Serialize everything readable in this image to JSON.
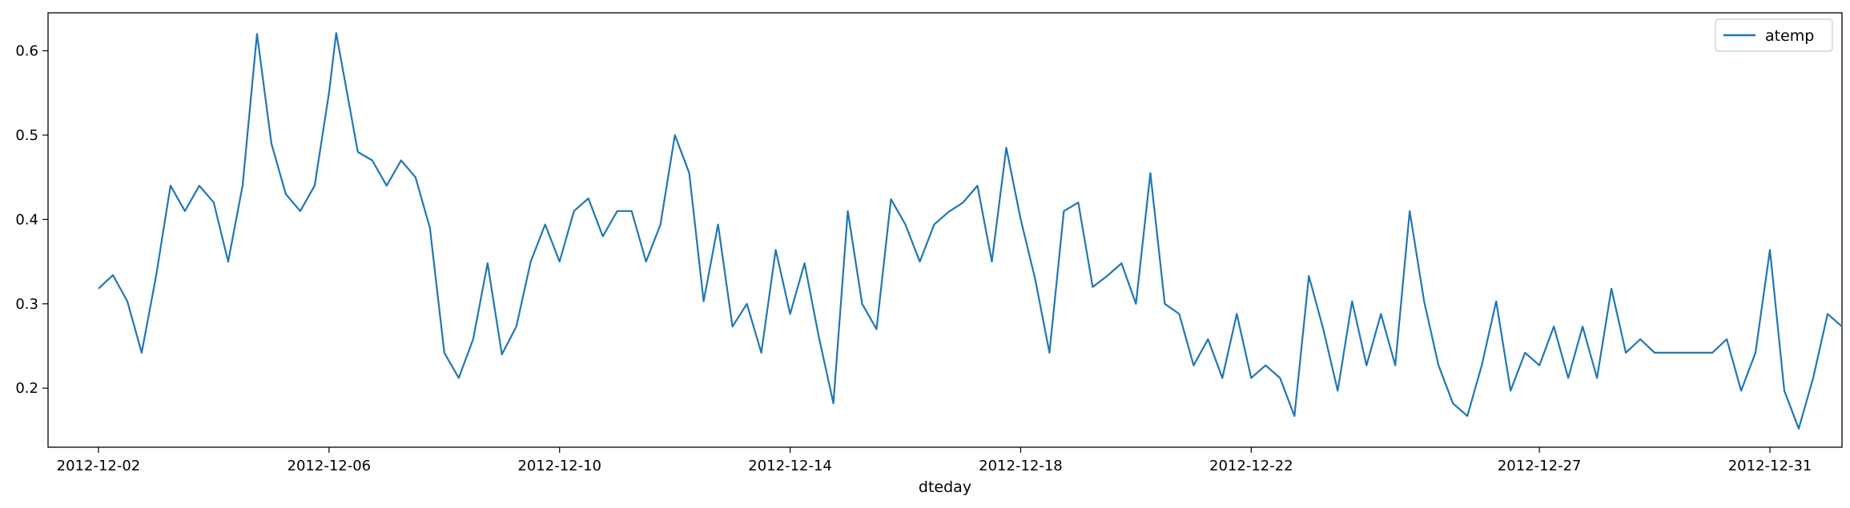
{
  "chart_data": {
    "type": "line",
    "title": "",
    "xlabel": "dteday",
    "ylabel": "",
    "legend": {
      "entries": [
        "atemp"
      ],
      "placement": "top-right"
    },
    "grid": false,
    "xlim": [
      "2012-12-01 03:00",
      "2013-01-01 06:00"
    ],
    "ylim": [
      0.13,
      0.645
    ],
    "x_ticks": [
      "2012-12-02",
      "2012-12-06",
      "2012-12-10",
      "2012-12-14",
      "2012-12-18",
      "2012-12-22",
      "2012-12-27",
      "2012-12-31"
    ],
    "y_ticks": [
      "0.2",
      "0.3",
      "0.4",
      "0.5",
      "0.6"
    ],
    "series": [
      {
        "name": "atemp",
        "color": "#1f77b4",
        "points": [
          [
            "2012-12-02 00:00",
            0.318
          ],
          [
            "2012-12-02 06:00",
            0.334
          ],
          [
            "2012-12-02 12:00",
            0.303
          ],
          [
            "2012-12-02 18:00",
            0.242
          ],
          [
            "2012-12-03 00:00",
            0.333
          ],
          [
            "2012-12-03 06:00",
            0.44
          ],
          [
            "2012-12-03 12:00",
            0.41
          ],
          [
            "2012-12-03 18:00",
            0.44
          ],
          [
            "2012-12-04 00:00",
            0.42
          ],
          [
            "2012-12-04 06:00",
            0.35
          ],
          [
            "2012-12-04 12:00",
            0.44
          ],
          [
            "2012-12-04 18:00",
            0.62
          ],
          [
            "2012-12-05 00:00",
            0.49
          ],
          [
            "2012-12-05 06:00",
            0.43
          ],
          [
            "2012-12-05 12:00",
            0.41
          ],
          [
            "2012-12-05 18:00",
            0.44
          ],
          [
            "2012-12-06 00:00",
            0.55
          ],
          [
            "2012-12-06 03:00",
            0.621
          ],
          [
            "2012-12-06 12:00",
            0.48
          ],
          [
            "2012-12-06 18:00",
            0.47
          ],
          [
            "2012-12-07 00:00",
            0.44
          ],
          [
            "2012-12-07 06:00",
            0.47
          ],
          [
            "2012-12-07 12:00",
            0.45
          ],
          [
            "2012-12-07 18:00",
            0.39
          ],
          [
            "2012-12-08 00:00",
            0.242
          ],
          [
            "2012-12-08 06:00",
            0.212
          ],
          [
            "2012-12-08 12:00",
            0.258
          ],
          [
            "2012-12-08 18:00",
            0.348
          ],
          [
            "2012-12-09 00:00",
            0.24
          ],
          [
            "2012-12-09 06:00",
            0.273
          ],
          [
            "2012-12-09 12:00",
            0.35
          ],
          [
            "2012-12-09 18:00",
            0.394
          ],
          [
            "2012-12-10 00:00",
            0.35
          ],
          [
            "2012-12-10 06:00",
            0.41
          ],
          [
            "2012-12-10 12:00",
            0.425
          ],
          [
            "2012-12-10 18:00",
            0.38
          ],
          [
            "2012-12-11 00:00",
            0.41
          ],
          [
            "2012-12-11 06:00",
            0.41
          ],
          [
            "2012-12-11 12:00",
            0.35
          ],
          [
            "2012-12-11 18:00",
            0.394
          ],
          [
            "2012-12-12 00:00",
            0.5
          ],
          [
            "2012-12-12 06:00",
            0.455
          ],
          [
            "2012-12-12 12:00",
            0.303
          ],
          [
            "2012-12-12 18:00",
            0.394
          ],
          [
            "2012-12-13 00:00",
            0.273
          ],
          [
            "2012-12-13 06:00",
            0.3
          ],
          [
            "2012-12-13 12:00",
            0.242
          ],
          [
            "2012-12-13 18:00",
            0.364
          ],
          [
            "2012-12-14 00:00",
            0.288
          ],
          [
            "2012-12-14 06:00",
            0.348
          ],
          [
            "2012-12-14 12:00",
            0.26
          ],
          [
            "2012-12-14 18:00",
            0.182
          ],
          [
            "2012-12-15 00:00",
            0.41
          ],
          [
            "2012-12-15 06:00",
            0.3
          ],
          [
            "2012-12-15 12:00",
            0.27
          ],
          [
            "2012-12-15 18:00",
            0.424
          ],
          [
            "2012-12-16 00:00",
            0.394
          ],
          [
            "2012-12-16 06:00",
            0.35
          ],
          [
            "2012-12-16 12:00",
            0.394
          ],
          [
            "2012-12-16 18:00",
            0.409
          ],
          [
            "2012-12-17 00:00",
            0.42
          ],
          [
            "2012-12-17 06:00",
            0.44
          ],
          [
            "2012-12-17 12:00",
            0.35
          ],
          [
            "2012-12-17 18:00",
            0.485
          ],
          [
            "2012-12-18 00:00",
            0.4
          ],
          [
            "2012-12-18 06:00",
            0.33
          ],
          [
            "2012-12-18 12:00",
            0.242
          ],
          [
            "2012-12-18 18:00",
            0.41
          ],
          [
            "2012-12-19 00:00",
            0.42
          ],
          [
            "2012-12-19 06:00",
            0.32
          ],
          [
            "2012-12-19 12:00",
            0.333
          ],
          [
            "2012-12-19 18:00",
            0.348
          ],
          [
            "2012-12-20 00:00",
            0.3
          ],
          [
            "2012-12-20 06:00",
            0.455
          ],
          [
            "2012-12-20 12:00",
            0.3
          ],
          [
            "2012-12-20 18:00",
            0.288
          ],
          [
            "2012-12-21 00:00",
            0.227
          ],
          [
            "2012-12-21 06:00",
            0.258
          ],
          [
            "2012-12-21 12:00",
            0.212
          ],
          [
            "2012-12-21 18:00",
            0.288
          ],
          [
            "2012-12-22 00:00",
            0.212
          ],
          [
            "2012-12-22 06:00",
            0.227
          ],
          [
            "2012-12-22 12:00",
            0.212
          ],
          [
            "2012-12-22 18:00",
            0.167
          ],
          [
            "2012-12-23 00:00",
            0.333
          ],
          [
            "2012-12-23 06:00",
            0.27
          ],
          [
            "2012-12-23 12:00",
            0.197
          ],
          [
            "2012-12-23 18:00",
            0.303
          ],
          [
            "2012-12-24 00:00",
            0.227
          ],
          [
            "2012-12-24 06:00",
            0.288
          ],
          [
            "2012-12-24 12:00",
            0.227
          ],
          [
            "2012-12-24 18:00",
            0.41
          ],
          [
            "2012-12-25 00:00",
            0.303
          ],
          [
            "2012-12-25 06:00",
            0.227
          ],
          [
            "2012-12-25 12:00",
            0.182
          ],
          [
            "2012-12-25 18:00",
            0.167
          ],
          [
            "2012-12-26 00:00",
            0.227
          ],
          [
            "2012-12-26 06:00",
            0.303
          ],
          [
            "2012-12-26 12:00",
            0.197
          ],
          [
            "2012-12-26 18:00",
            0.242
          ],
          [
            "2012-12-27 00:00",
            0.227
          ],
          [
            "2012-12-27 06:00",
            0.273
          ],
          [
            "2012-12-27 12:00",
            0.212
          ],
          [
            "2012-12-27 18:00",
            0.273
          ],
          [
            "2012-12-28 00:00",
            0.212
          ],
          [
            "2012-12-28 06:00",
            0.318
          ],
          [
            "2012-12-28 12:00",
            0.242
          ],
          [
            "2012-12-28 18:00",
            0.258
          ],
          [
            "2012-12-29 00:00",
            0.242
          ],
          [
            "2012-12-29 12:00",
            0.242
          ],
          [
            "2012-12-30 00:00",
            0.242
          ],
          [
            "2012-12-30 06:00",
            0.258
          ],
          [
            "2012-12-30 12:00",
            0.197
          ],
          [
            "2012-12-30 18:00",
            0.242
          ],
          [
            "2012-12-31 00:00",
            0.364
          ],
          [
            "2012-12-31 06:00",
            0.197
          ],
          [
            "2012-12-31 12:00",
            0.152
          ],
          [
            "2012-12-31 18:00",
            0.212
          ],
          [
            "2013-01-01 00:00",
            0.288
          ],
          [
            "2013-01-01 06:00",
            0.273
          ]
        ]
      }
    ]
  }
}
